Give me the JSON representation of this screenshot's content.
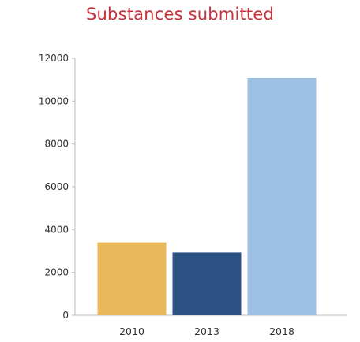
{
  "chart_data": {
    "type": "bar",
    "title": "Substances submitted",
    "xlabel": "",
    "ylabel": "",
    "categories": [
      "2010",
      "2013",
      "2018"
    ],
    "values": [
      3400,
      2930,
      11080
    ],
    "bar_colors": [
      "#e8b85a",
      "#2b5282",
      "#9dbfe3"
    ],
    "ylim": [
      0,
      12000
    ],
    "yticks": [
      0,
      2000,
      4000,
      6000,
      8000,
      10000,
      12000
    ],
    "ytick_labels": [
      "0",
      "2000",
      "4000",
      "6000",
      "8000",
      "10000",
      "12000"
    ],
    "grid": false,
    "legend": "none"
  },
  "colors": {
    "title": "#c8303a",
    "axis": "#bbbbbb",
    "text": "#333333"
  }
}
